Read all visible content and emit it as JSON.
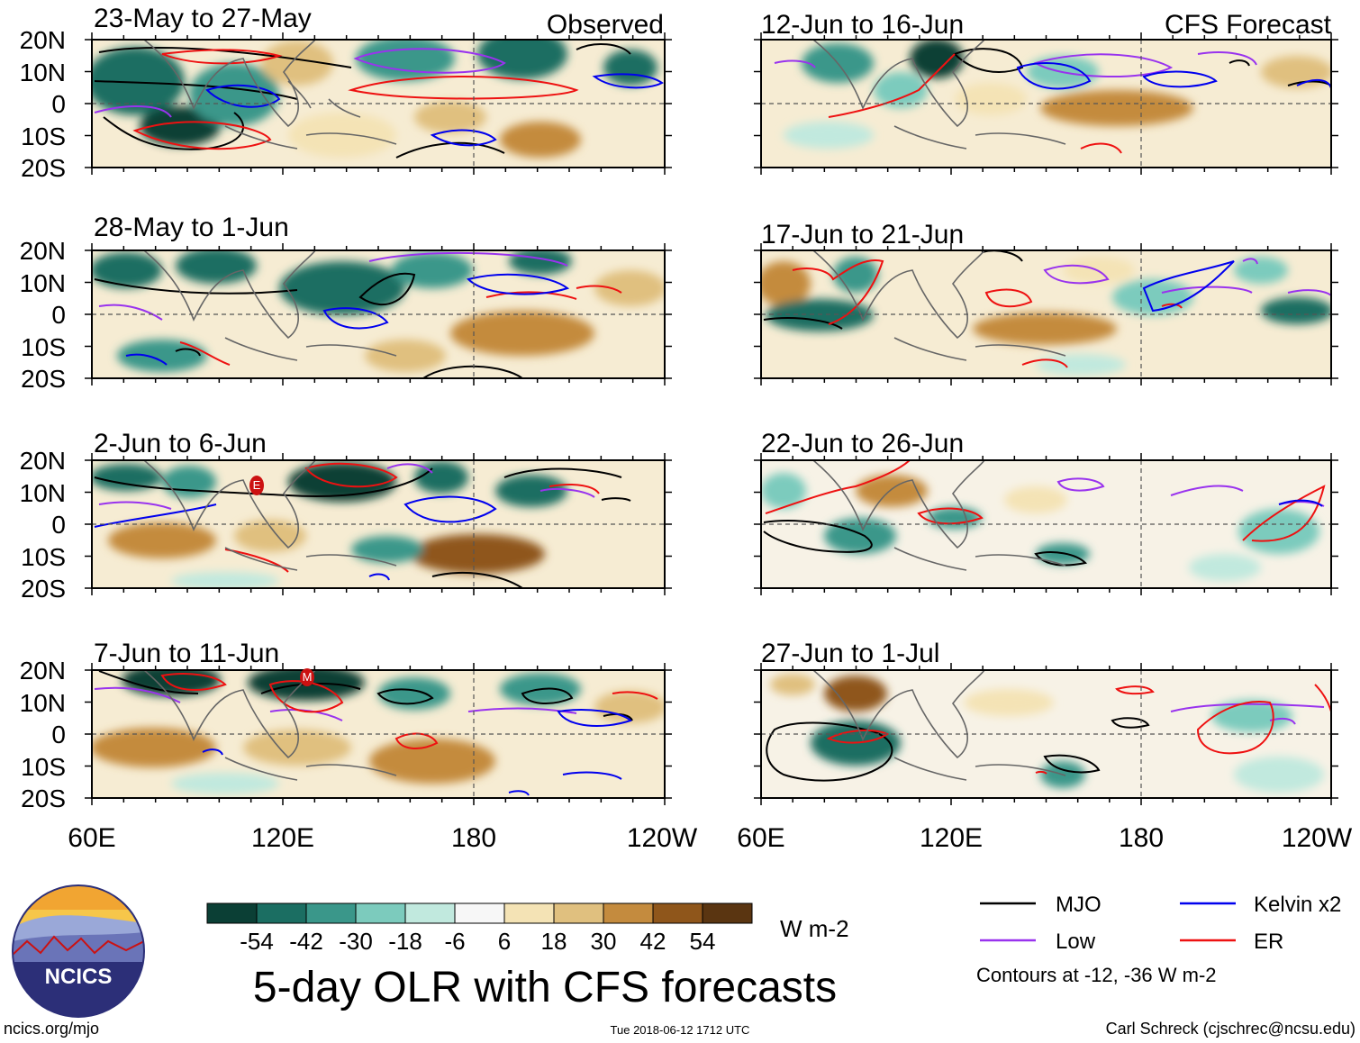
{
  "header_labels": {
    "observed": "Observed",
    "forecast": "CFS Forecast"
  },
  "panels_left": [
    {
      "title": "23-May to 27-May"
    },
    {
      "title": "28-May to 1-Jun"
    },
    {
      "title": "2-Jun to 6-Jun"
    },
    {
      "title": "7-Jun to 11-Jun"
    }
  ],
  "panels_right": [
    {
      "title": "12-Jun to 16-Jun"
    },
    {
      "title": "17-Jun to 21-Jun"
    },
    {
      "title": "22-Jun to 26-Jun"
    },
    {
      "title": "27-Jun to 1-Jul"
    }
  ],
  "lat_labels": [
    "20N",
    "10N",
    "0",
    "10S",
    "20S"
  ],
  "lon_labels": [
    "60E",
    "120E",
    "180",
    "120W"
  ],
  "colorbar": {
    "labels": [
      "-54",
      "-42",
      "-30",
      "-18",
      "-6",
      "6",
      "18",
      "30",
      "42",
      "54"
    ],
    "colors": [
      "#0b3f35",
      "#1b6e62",
      "#3a978a",
      "#7ccbbd",
      "#c1e9de",
      "#f7f7f7",
      "#f4e3b5",
      "#e0c07f",
      "#c48b3e",
      "#8f561b",
      "#5a3511"
    ],
    "unit": "W m-2"
  },
  "title": "5-day OLR with CFS forecasts",
  "legend": {
    "items": [
      {
        "label": "MJO",
        "color": "#000000"
      },
      {
        "label": "Kelvin x2",
        "color": "#0000ee"
      },
      {
        "label": "Low",
        "color": "#9933ee"
      },
      {
        "label": "ER",
        "color": "#ee1111"
      }
    ],
    "note": "Contours at -12, -36 W m-2"
  },
  "logo": {
    "text": "NCICS"
  },
  "footer": {
    "url": "ncics.org/mjo",
    "timestamp": "Tue 2018-06-12 1712 UTC",
    "credit": "Carl Schreck (cjschrec@ncsu.edu)"
  },
  "markers": [
    {
      "panel": "L2",
      "letter": "E"
    },
    {
      "panel": "L3",
      "letter": "M"
    }
  ]
}
